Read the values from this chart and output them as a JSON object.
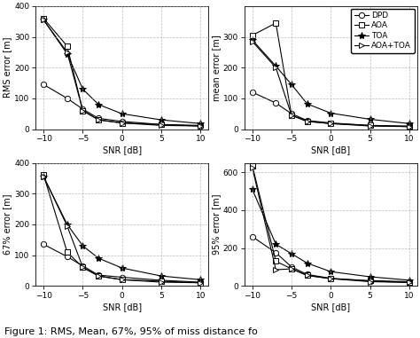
{
  "snr": [
    -10,
    -7,
    -5,
    -3,
    0,
    5,
    10
  ],
  "rms": {
    "DPD": [
      145,
      100,
      65,
      35,
      25,
      15,
      10
    ],
    "AOA": [
      360,
      270,
      60,
      30,
      20,
      15,
      12
    ],
    "TOA": [
      355,
      245,
      130,
      80,
      50,
      30,
      18
    ],
    "AOA+TOA": [
      355,
      250,
      60,
      30,
      20,
      12,
      10
    ]
  },
  "mean": {
    "DPD": [
      120,
      85,
      50,
      28,
      20,
      12,
      8
    ],
    "AOA": [
      305,
      345,
      45,
      25,
      18,
      12,
      10
    ],
    "TOA": [
      290,
      205,
      145,
      82,
      52,
      32,
      18
    ],
    "AOA+TOA": [
      285,
      200,
      45,
      25,
      18,
      10,
      8
    ]
  },
  "p67": {
    "DPD": [
      135,
      95,
      65,
      35,
      28,
      18,
      12
    ],
    "AOA": [
      360,
      110,
      60,
      32,
      20,
      15,
      10
    ],
    "TOA": [
      355,
      200,
      130,
      90,
      58,
      32,
      20
    ],
    "AOA+TOA": [
      355,
      195,
      60,
      32,
      20,
      12,
      10
    ]
  },
  "p95": {
    "DPD": [
      260,
      175,
      100,
      60,
      40,
      25,
      18
    ],
    "AOA": [
      635,
      130,
      90,
      55,
      38,
      28,
      22
    ],
    "TOA": [
      510,
      220,
      170,
      120,
      75,
      48,
      30
    ],
    "AOA+TOA": [
      625,
      85,
      90,
      55,
      38,
      22,
      18
    ]
  },
  "rms_ylim": [
    0,
    400
  ],
  "mean_ylim": [
    0,
    400
  ],
  "p67_ylim": [
    0,
    400
  ],
  "p95_ylim": [
    0,
    650
  ],
  "rms_yticks": [
    0,
    100,
    200,
    300,
    400
  ],
  "mean_yticks": [
    0,
    100,
    200,
    300
  ],
  "p67_yticks": [
    0,
    100,
    200,
    300,
    400
  ],
  "p95_yticks": [
    0,
    200,
    400,
    600
  ],
  "xlim": [
    -11,
    11
  ],
  "xticks": [
    -10,
    -5,
    0,
    5,
    10
  ],
  "markers": [
    "o",
    "s",
    "*",
    ">"
  ],
  "labels": [
    "DPD",
    "AOA",
    "TOA",
    "AOA+TOA"
  ],
  "ylabels": [
    "RMS error [m]",
    "mean error [m]",
    "67% error [m]",
    "95% error [m]"
  ],
  "xlabel": "SNR [dB]",
  "figure_caption": "Figure 1: RMS, Mean, 67%, 95% of miss distance fo"
}
